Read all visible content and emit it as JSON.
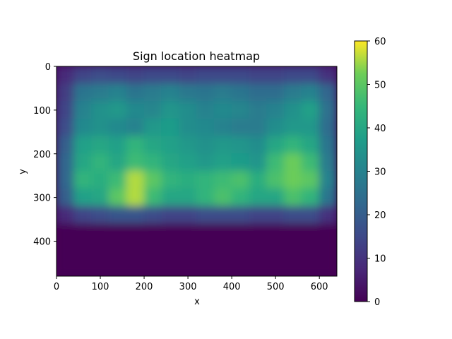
{
  "chart_data": {
    "type": "heatmap",
    "title": "Sign location heatmap",
    "xlabel": "x",
    "ylabel": "y",
    "xlim": [
      0,
      640
    ],
    "ylim": [
      480,
      0
    ],
    "y_inverted": true,
    "grid": false,
    "colormap": "viridis",
    "x_ticks": [
      0,
      100,
      200,
      300,
      400,
      500,
      600
    ],
    "y_ticks": [
      0,
      100,
      200,
      300,
      400
    ],
    "colorbar": {
      "range": [
        0,
        60
      ],
      "ticks": [
        0,
        10,
        20,
        30,
        40,
        50,
        60
      ],
      "position": "right"
    },
    "cell_size": 40,
    "x_centers": [
      20,
      60,
      100,
      140,
      180,
      220,
      260,
      300,
      340,
      380,
      420,
      460,
      500,
      540,
      580,
      620
    ],
    "y_centers": [
      20,
      60,
      100,
      140,
      180,
      220,
      260,
      300,
      340,
      380,
      420,
      460
    ],
    "values": [
      [
        8,
        14,
        16,
        15,
        14,
        15,
        15,
        14,
        15,
        15,
        15,
        14,
        14,
        15,
        15,
        10
      ],
      [
        12,
        26,
        28,
        30,
        26,
        28,
        30,
        27,
        26,
        28,
        26,
        24,
        24,
        28,
        30,
        22
      ],
      [
        14,
        30,
        34,
        36,
        32,
        31,
        35,
        33,
        30,
        32,
        31,
        28,
        30,
        34,
        38,
        25
      ],
      [
        16,
        32,
        34,
        32,
        30,
        36,
        37,
        33,
        32,
        30,
        28,
        28,
        33,
        36,
        36,
        24
      ],
      [
        20,
        38,
        40,
        38,
        44,
        40,
        38,
        36,
        34,
        36,
        35,
        33,
        40,
        44,
        40,
        26
      ],
      [
        22,
        40,
        44,
        40,
        46,
        44,
        40,
        38,
        36,
        38,
        37,
        35,
        46,
        52,
        46,
        28
      ],
      [
        22,
        44,
        42,
        46,
        56,
        50,
        44,
        42,
        44,
        46,
        48,
        42,
        48,
        52,
        50,
        30
      ],
      [
        20,
        38,
        40,
        50,
        56,
        46,
        40,
        40,
        44,
        48,
        44,
        40,
        40,
        48,
        44,
        26
      ],
      [
        8,
        14,
        16,
        18,
        18,
        16,
        14,
        14,
        16,
        16,
        16,
        14,
        14,
        16,
        16,
        10
      ],
      [
        0,
        0,
        0,
        0,
        0,
        0,
        0,
        0,
        0,
        0,
        0,
        0,
        0,
        0,
        0,
        0
      ],
      [
        0,
        0,
        0,
        0,
        0,
        0,
        0,
        0,
        0,
        0,
        0,
        0,
        0,
        0,
        0,
        0
      ],
      [
        0,
        0,
        0,
        0,
        0,
        0,
        0,
        0,
        0,
        0,
        0,
        0,
        0,
        0,
        0,
        0
      ]
    ]
  }
}
